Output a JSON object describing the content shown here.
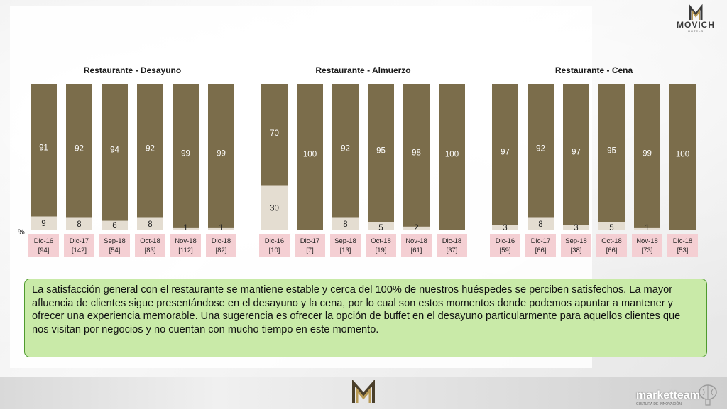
{
  "brand": {
    "logo_text": "MOVICH",
    "logo_sub": "HOTELS",
    "footer_brand": "marketteam",
    "footer_tag": "CULTURA DE INNOVACIÓN"
  },
  "colors": {
    "satisfied": "#7b6d4b",
    "dissatisfied": "#e4ddd1",
    "category_bg": "#f4cfd3",
    "textbox_bg": "#c9eaa8",
    "textbox_border": "#4f9a2e"
  },
  "percent_label": "%",
  "chart_data": [
    {
      "type": "bar",
      "stacked": true,
      "title": "Restaurante - Desayuno",
      "categories": [
        "Dic-16",
        "Dic-17",
        "Sep-18",
        "Oct-18",
        "Nov-18",
        "Dic-18"
      ],
      "sample_sizes": [
        "[94]",
        "[142]",
        "[54]",
        "[83]",
        "[112]",
        "[82]"
      ],
      "series": [
        {
          "values": [
            91,
            92,
            94,
            92,
            99,
            99
          ]
        },
        {
          "values": [
            9,
            8,
            6,
            8,
            1,
            1
          ]
        }
      ],
      "ylim": [
        0,
        100
      ]
    },
    {
      "type": "bar",
      "stacked": true,
      "title": "Restaurante - Almuerzo",
      "categories": [
        "Dic-16",
        "Dic-17",
        "Sep-18",
        "Oct-18",
        "Nov-18",
        "Dic-18"
      ],
      "sample_sizes": [
        "[10]",
        "[7]",
        "[13]",
        "[19]",
        "[61]",
        "[37]"
      ],
      "series": [
        {
          "values": [
            70,
            100,
            92,
            95,
            98,
            100
          ]
        },
        {
          "values": [
            30,
            0,
            8,
            5,
            2,
            0
          ]
        }
      ],
      "ylim": [
        0,
        100
      ]
    },
    {
      "type": "bar",
      "stacked": true,
      "title": "Restaurante - Cena",
      "categories": [
        "Dic-16",
        "Dic-17",
        "Sep-18",
        "Oct-18",
        "Nov-18",
        "Dic-18"
      ],
      "sample_sizes": [
        "[59]",
        "[66]",
        "[38]",
        "[66]",
        "[73]",
        "[53]"
      ],
      "series": [
        {
          "values": [
            97,
            92,
            97,
            95,
            99,
            100
          ]
        },
        {
          "values": [
            3,
            8,
            3,
            5,
            1,
            0
          ]
        }
      ],
      "ylim": [
        0,
        100
      ]
    }
  ],
  "summary_text": "La satisfacción general con el restaurante se mantiene estable y cerca del 100% de nuestros huéspedes se perciben satisfechos. La mayor afluencia de clientes sigue presentándose en el desayuno y la cena, por lo cual son estos momentos donde podemos apuntar a mantener y ofrecer una experiencia memorable. Una sugerencia es ofrecer la opción de buffet en el desayuno particularmente para aquellos clientes que nos visitan por negocios y no cuentan con mucho tiempo en este momento."
}
